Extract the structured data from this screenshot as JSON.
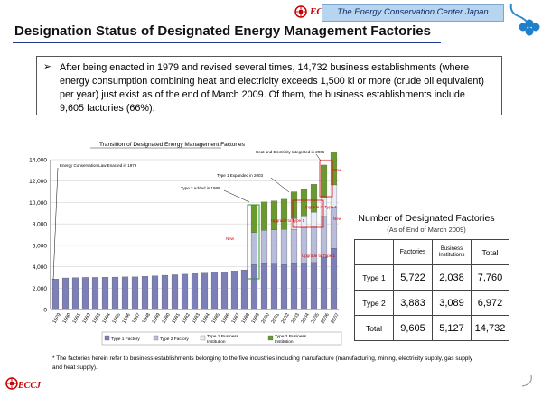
{
  "header": {
    "brand": "ECCJ",
    "organization": "The Energy Conservation Center Japan"
  },
  "page": {
    "title": "Designation Status of Designated Energy Management Factories",
    "bullet": "➢",
    "summary": "After being enacted in 1979 and revised several times, 14,732 business establishments (where energy consumption combining heat and electricity exceeds 1,500 kl or more (crude oil equivalent) per year) just exist as of the end of March 2009. Of them, the business establishments include 9,605  factories (66%).",
    "footnote": "* The factories herein refer  to business establishments belonging to the five industries including  manufacture (manufacturing, mining, electricity supply, gas supply  and  heat  supply)."
  },
  "footer": {
    "brand": "ECCJ"
  },
  "chart_data": {
    "type": "bar",
    "stacked": true,
    "title": "Transition of Designated Energy Management Factories",
    "ylim": [
      0,
      14000
    ],
    "yticks": [
      "0",
      "2,000",
      "4,000",
      "6,000",
      "8,000",
      "10,000",
      "12,000",
      "14,000"
    ],
    "categories": [
      "1979",
      "1980",
      "1981",
      "1982",
      "1983",
      "1984",
      "1985",
      "1986",
      "1987",
      "1988",
      "1989",
      "1990",
      "1991",
      "1992",
      "1993",
      "1994",
      "1995",
      "1996",
      "1997",
      "1998",
      "1999",
      "2000",
      "2001",
      "2002",
      "2003",
      "2004",
      "2005",
      "2006",
      "2007"
    ],
    "series": [
      {
        "name": "Type 1 Factory",
        "color": "#7c7fb8",
        "values": [
          2850,
          2950,
          2980,
          3000,
          3000,
          3020,
          3030,
          3050,
          3050,
          3100,
          3150,
          3200,
          3250,
          3300,
          3350,
          3400,
          3500,
          3500,
          3600,
          3700,
          4200,
          4300,
          4250,
          4200,
          4300,
          4350,
          4400,
          4900,
          5722
        ]
      },
      {
        "name": "Type 2 Factory",
        "color": "#b9bddc",
        "values": [
          0,
          0,
          0,
          0,
          0,
          0,
          0,
          0,
          0,
          0,
          0,
          0,
          0,
          0,
          0,
          0,
          0,
          0,
          0,
          0,
          3000,
          3100,
          3200,
          3300,
          3200,
          3300,
          3400,
          3800,
          3883
        ]
      },
      {
        "name": "Type 1 Business Institution",
        "color": "#e6ecf8",
        "values": [
          0,
          0,
          0,
          0,
          0,
          0,
          0,
          0,
          0,
          0,
          0,
          0,
          0,
          0,
          0,
          0,
          0,
          0,
          0,
          0,
          0,
          0,
          0,
          0,
          1000,
          1100,
          1300,
          1800,
          2038
        ]
      },
      {
        "name": "Type 2 Business Institution",
        "color": "#6a9a2e",
        "values": [
          0,
          0,
          0,
          0,
          0,
          0,
          0,
          0,
          0,
          0,
          0,
          0,
          0,
          0,
          0,
          0,
          0,
          0,
          0,
          0,
          2600,
          2650,
          2700,
          2800,
          2500,
          2450,
          2600,
          3000,
          3089
        ]
      }
    ],
    "annotations": [
      "Energy Conservation Law Enacted in 1979",
      "Type 2 Added in 1999",
      "Type 1 Expanded in 2003",
      "Heat and Electricity Integrated in 2006",
      "New",
      "New",
      "New",
      "Upgrade to Type 1",
      "Upgrade to Type 1",
      "Upgrade to Type 1"
    ]
  },
  "factory_table": {
    "title": "Number of Designated Factories",
    "subtitle": "(As of End of March 2009)",
    "headers": [
      "",
      "Factories",
      "Business Institutions",
      "Total"
    ],
    "rows": [
      {
        "label": "Type 1",
        "factories": "5,722",
        "institutions": "2,038",
        "total": "7,760"
      },
      {
        "label": "Type 2",
        "factories": "3,883",
        "institutions": "3,089",
        "total": "6,972"
      },
      {
        "label": "Total",
        "factories": "9,605",
        "institutions": "5,127",
        "total": "14,732"
      }
    ]
  }
}
